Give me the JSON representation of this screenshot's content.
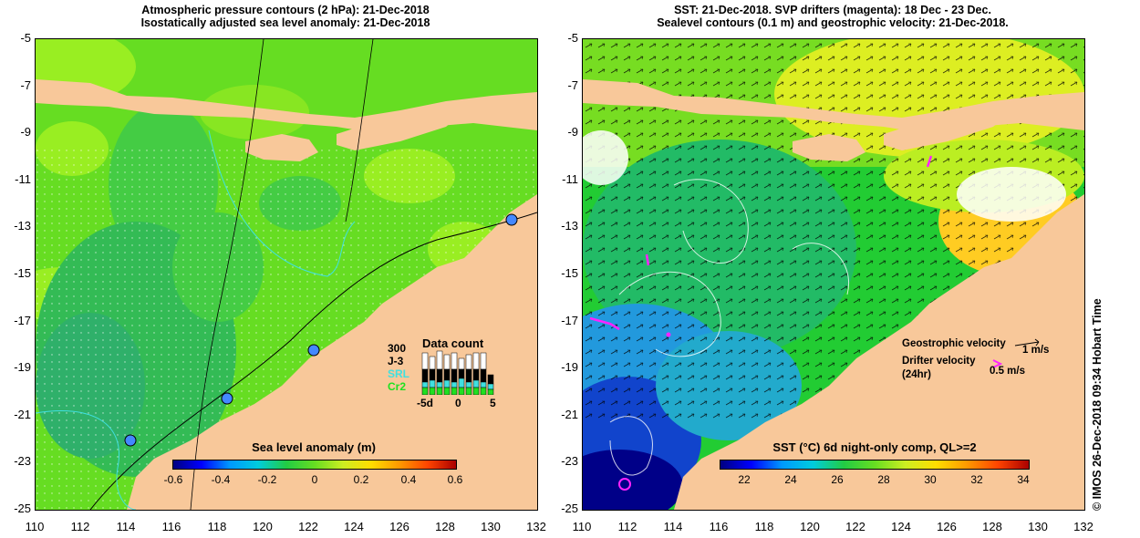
{
  "left_panel": {
    "title_line1": "Atmospheric pressure contours (2 hPa): 21-Dec-2018",
    "title_line2": "Isostatically adjusted sea level anomaly: 21-Dec-2018",
    "colorbar_title": "Sea level anomaly (m)",
    "colorbar_labels": [
      "-0.6",
      "-0.4",
      "-0.2",
      "0",
      "0.2",
      "0.4",
      "0.6"
    ],
    "colorbar_range": [
      -0.6,
      0.6
    ],
    "data_count": {
      "title": "Data count",
      "ymax_label": "300",
      "series": [
        {
          "name": "J-3",
          "color": "#000000"
        },
        {
          "name": "SRL",
          "color": "#40e0e0"
        },
        {
          "name": "Cr2",
          "color": "#20e020"
        }
      ],
      "x_labels": [
        "-5d",
        "0",
        "5"
      ]
    }
  },
  "right_panel": {
    "title_line1": "SST: 21-Dec-2018. SVP drifters (magenta): 18 Dec - 23 Dec.",
    "title_line2": "Sealevel contours (0.1 m) and geostrophic velocity: 21-Dec-2018.",
    "colorbar_title": "SST (°C) 6d night-only comp, QL>=2",
    "colorbar_labels": [
      "22",
      "24",
      "26",
      "28",
      "30",
      "32",
      "34"
    ],
    "colorbar_range": [
      22,
      34
    ],
    "legend": {
      "geo_label": "Geostrophic velocity",
      "geo_scale": "1 m/s",
      "drifter_label": "Drifter velocity",
      "drifter_sub": "(24hr)",
      "drifter_scale": "0.5 m/s"
    }
  },
  "axes": {
    "lat_ticks": [
      "-5",
      "-7",
      "-9",
      "-11",
      "-13",
      "-15",
      "-17",
      "-19",
      "-21",
      "-23",
      "-25"
    ],
    "lon_ticks": [
      "110",
      "112",
      "114",
      "116",
      "118",
      "120",
      "122",
      "124",
      "126",
      "128",
      "130",
      "132"
    ],
    "lat_range": [
      -25,
      -5
    ],
    "lon_range": [
      110,
      132
    ]
  },
  "credit": "© IMOS 26-Dec-2018 09:34 Hobart Time",
  "colors": {
    "land": "#f8c89a",
    "ocean_sla_base": "#66dd22",
    "ocean_sst_base": "#22cc33"
  }
}
